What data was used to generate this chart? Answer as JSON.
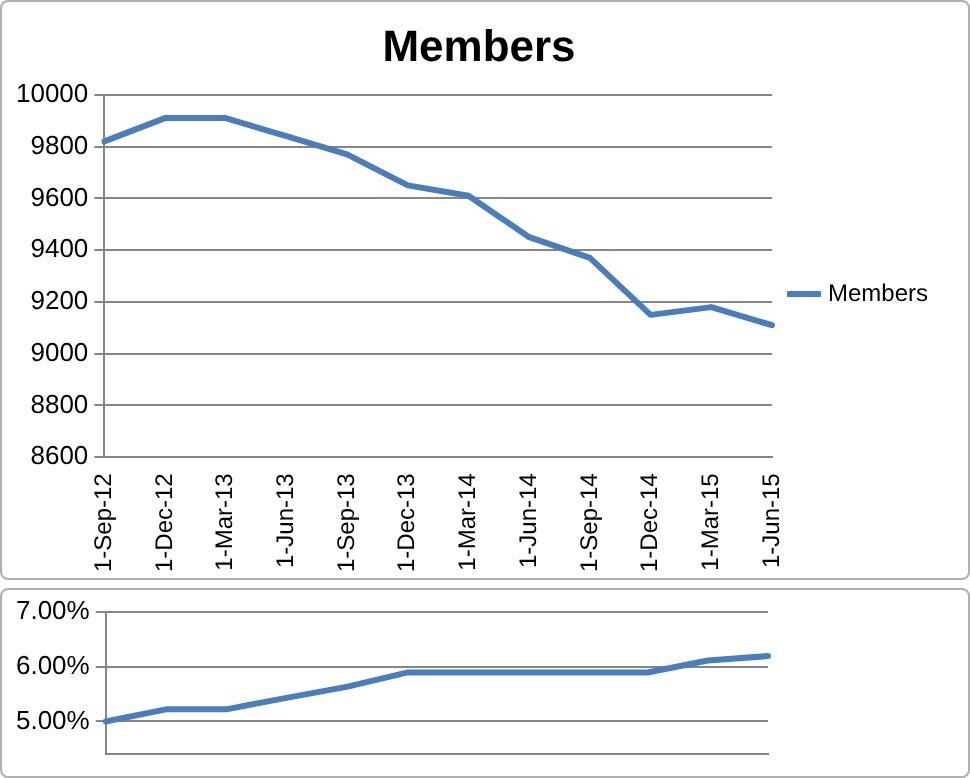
{
  "chart_data": [
    {
      "type": "line",
      "title": "Members",
      "categories": [
        "1-Sep-12",
        "1-Dec-12",
        "1-Mar-13",
        "1-Jun-13",
        "1-Sep-13",
        "1-Dec-13",
        "1-Mar-14",
        "1-Jun-14",
        "1-Sep-14",
        "1-Dec-14",
        "1-Mar-15",
        "1-Jun-15"
      ],
      "series": [
        {
          "name": "Members",
          "color": "#4a7ebb",
          "values": [
            9820,
            9910,
            9910,
            9840,
            9770,
            9650,
            9610,
            9450,
            9370,
            9150,
            9180,
            9110
          ]
        }
      ],
      "ylim": [
        8600,
        10000
      ],
      "yticks": [
        8600,
        8800,
        9000,
        9200,
        9400,
        9600,
        9800,
        10000
      ],
      "grid": "y",
      "legend": "right",
      "marker": "none",
      "line_style": "solid"
    },
    {
      "type": "line",
      "categories": [
        null,
        null,
        null,
        null,
        null,
        null,
        null,
        null,
        null,
        null,
        null,
        null
      ],
      "values": [
        5.0,
        5.22,
        5.22,
        5.43,
        5.63,
        5.89,
        5.89,
        5.89,
        5.89,
        5.89,
        6.11,
        6.19
      ],
      "color": "#4a7ebb",
      "ylim": [
        4.4,
        7.0
      ],
      "yticks": [
        {
          "value": 5,
          "label": "5.00%"
        },
        {
          "value": 6,
          "label": "6.00%"
        },
        {
          "value": 7,
          "label": "7.00%"
        }
      ],
      "grid": "y",
      "tick_labels": "y",
      "marker": "none",
      "line_style": "solid"
    }
  ]
}
